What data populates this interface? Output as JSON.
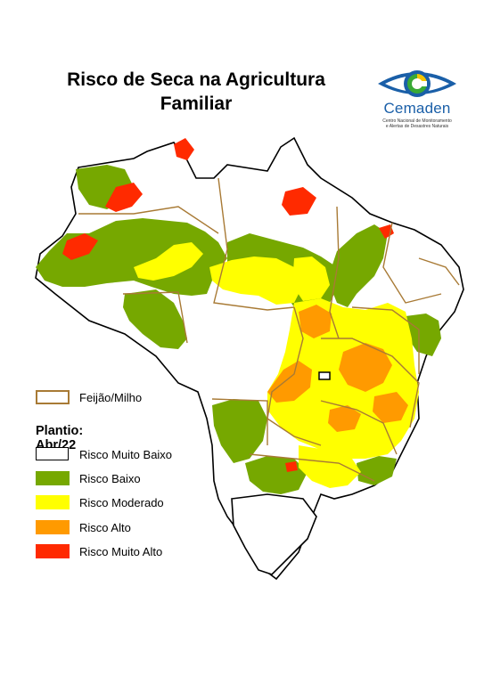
{
  "title": {
    "line1": "Risco de Seca na Agricultura",
    "line2": "Familiar"
  },
  "logo": {
    "name": "Cemaden",
    "subtitle_line1": "Centro Nacional de Monitoramento",
    "subtitle_line2": "e Alertas de Desastres Naturais",
    "colors": {
      "blue": "#1a5fa8",
      "green": "#39a935",
      "yellow": "#f5c400"
    }
  },
  "legend": {
    "crop": {
      "label": "Feijão/Milho",
      "color": "#a87a35"
    },
    "planting": "Plantio: Abr/22",
    "classes": [
      {
        "label": "Risco Muito Baixo",
        "color": "#ffffff"
      },
      {
        "label": "Risco Baixo",
        "color": "#76a800"
      },
      {
        "label": "Risco Moderado",
        "color": "#ffff00"
      },
      {
        "label": "Risco Alto",
        "color": "#ff9a00"
      },
      {
        "label": "Risco Muito Alto",
        "color": "#ff2a00"
      }
    ]
  }
}
